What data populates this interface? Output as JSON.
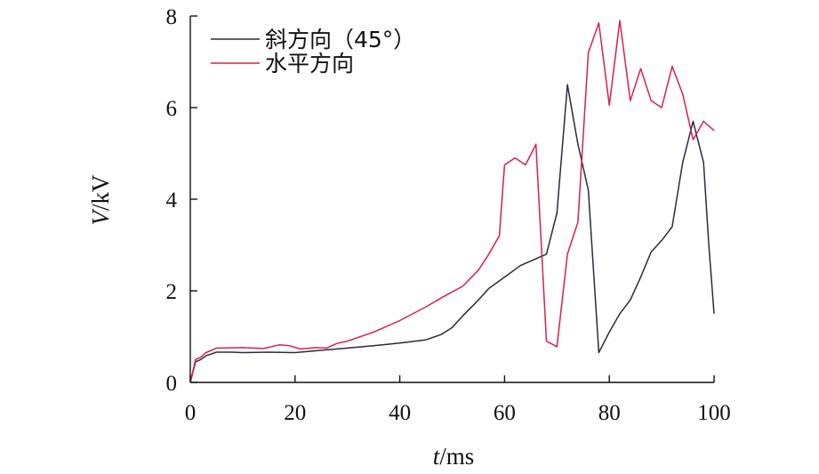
{
  "chart_data": {
    "type": "line",
    "xlabel": {
      "var": "t",
      "unit": "/ms"
    },
    "ylabel": {
      "var": "V",
      "unit": "/kV"
    },
    "xlim": [
      0,
      100
    ],
    "ylim": [
      0,
      8
    ],
    "xticks": [
      0,
      20,
      40,
      60,
      80,
      100
    ],
    "yticks": [
      0,
      2,
      4,
      6,
      8
    ],
    "grid": false,
    "legend_position": "top-left",
    "series": [
      {
        "name": "斜方向（45°）",
        "color": "#2b2b3a",
        "points": [
          [
            0,
            0
          ],
          [
            1,
            0.45
          ],
          [
            2,
            0.5
          ],
          [
            3,
            0.58
          ],
          [
            5,
            0.66
          ],
          [
            8,
            0.66
          ],
          [
            10,
            0.65
          ],
          [
            15,
            0.66
          ],
          [
            20,
            0.65
          ],
          [
            25,
            0.7
          ],
          [
            30,
            0.75
          ],
          [
            35,
            0.8
          ],
          [
            40,
            0.86
          ],
          [
            45,
            0.93
          ],
          [
            48,
            1.05
          ],
          [
            50,
            1.2
          ],
          [
            52,
            1.45
          ],
          [
            55,
            1.8
          ],
          [
            57,
            2.05
          ],
          [
            60,
            2.3
          ],
          [
            63,
            2.55
          ],
          [
            66,
            2.7
          ],
          [
            68,
            2.8
          ],
          [
            70,
            3.7
          ],
          [
            72,
            6.5
          ],
          [
            74,
            5.2
          ],
          [
            76,
            4.2
          ],
          [
            78,
            0.65
          ],
          [
            80,
            1.1
          ],
          [
            82,
            1.5
          ],
          [
            84,
            1.8
          ],
          [
            86,
            2.3
          ],
          [
            88,
            2.85
          ],
          [
            90,
            3.1
          ],
          [
            92,
            3.4
          ],
          [
            94,
            4.8
          ],
          [
            96,
            5.7
          ],
          [
            98,
            4.8
          ],
          [
            99,
            3.0
          ],
          [
            100,
            1.5
          ]
        ]
      },
      {
        "name": "水平方向",
        "color": "#d6204c",
        "points": [
          [
            0,
            0
          ],
          [
            1,
            0.5
          ],
          [
            2,
            0.55
          ],
          [
            3,
            0.65
          ],
          [
            5,
            0.75
          ],
          [
            10,
            0.76
          ],
          [
            14,
            0.74
          ],
          [
            17,
            0.82
          ],
          [
            19,
            0.8
          ],
          [
            21,
            0.73
          ],
          [
            24,
            0.76
          ],
          [
            26,
            0.75
          ],
          [
            28,
            0.85
          ],
          [
            30,
            0.9
          ],
          [
            35,
            1.1
          ],
          [
            40,
            1.35
          ],
          [
            45,
            1.65
          ],
          [
            48,
            1.85
          ],
          [
            52,
            2.1
          ],
          [
            55,
            2.45
          ],
          [
            57,
            2.8
          ],
          [
            59,
            3.2
          ],
          [
            60,
            4.75
          ],
          [
            62,
            4.9
          ],
          [
            64,
            4.75
          ],
          [
            66,
            5.2
          ],
          [
            68,
            0.9
          ],
          [
            70,
            0.78
          ],
          [
            72,
            2.8
          ],
          [
            74,
            3.5
          ],
          [
            76,
            7.2
          ],
          [
            78,
            7.85
          ],
          [
            80,
            6.05
          ],
          [
            82,
            7.9
          ],
          [
            84,
            6.15
          ],
          [
            86,
            6.85
          ],
          [
            88,
            6.15
          ],
          [
            90,
            6.0
          ],
          [
            92,
            6.9
          ],
          [
            94,
            6.3
          ],
          [
            96,
            5.3
          ],
          [
            98,
            5.7
          ],
          [
            100,
            5.5
          ]
        ]
      }
    ]
  }
}
